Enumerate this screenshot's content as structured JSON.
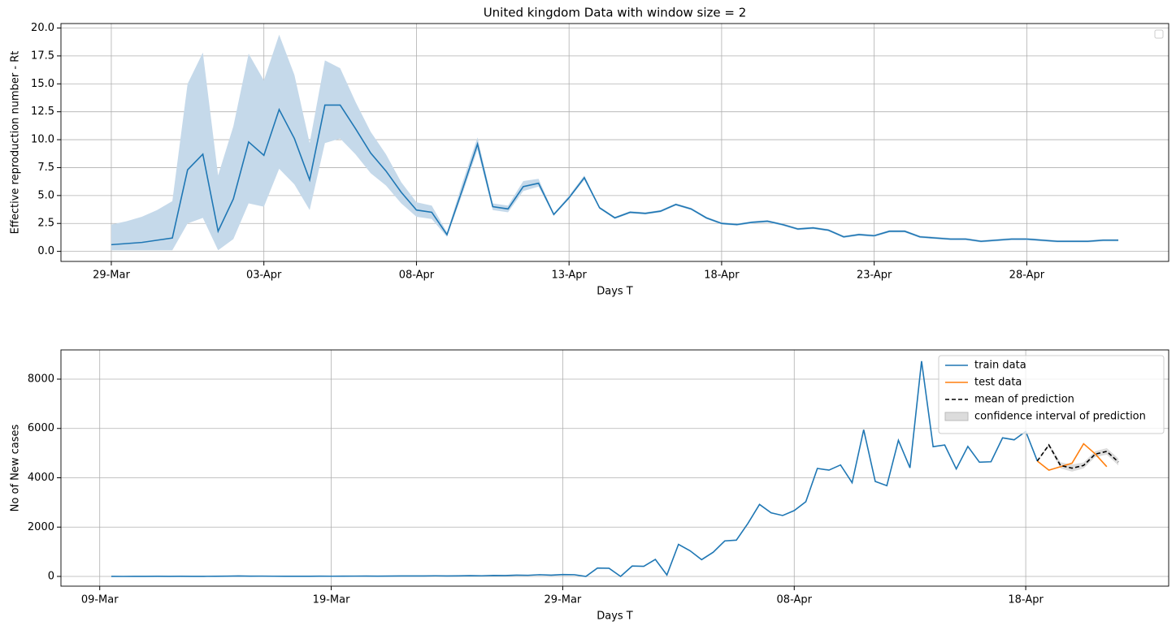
{
  "chart_data": [
    {
      "type": "line",
      "title": "United kingdom Data with window size = 2",
      "xlabel": "Days T",
      "ylabel": "Effective reproduction number - Rt",
      "categories": [
        "29-Mar",
        null,
        null,
        null,
        null,
        null,
        null,
        null,
        null,
        null,
        "03-Apr",
        null,
        null,
        null,
        null,
        null,
        null,
        null,
        null,
        null,
        "08-Apr",
        null,
        null,
        null,
        null,
        null,
        null,
        null,
        null,
        null,
        "13-Apr",
        null,
        null,
        null,
        null,
        null,
        null,
        null,
        null,
        null,
        "18-Apr",
        null,
        null,
        null,
        null,
        null,
        null,
        null,
        null,
        null,
        "23-Apr",
        null,
        null,
        null,
        null,
        null,
        null,
        null,
        null,
        null,
        "28-Apr",
        null,
        null,
        null,
        null,
        null,
        null
      ],
      "series": [
        {
          "color": "#1f77b4",
          "band_color": "#c5d9ea",
          "values": [
            0.6,
            0.7,
            0.8,
            1.0,
            1.2,
            7.3,
            8.7,
            1.8,
            4.7,
            9.8,
            8.6,
            12.7,
            10.1,
            6.4,
            13.1,
            13.1,
            11.0,
            8.8,
            7.2,
            5.3,
            3.7,
            3.5,
            1.5,
            5.5,
            9.6,
            4.0,
            3.8,
            5.8,
            6.1,
            3.3,
            4.8,
            6.6,
            3.9,
            3.0,
            3.5,
            3.4,
            3.6,
            4.2,
            3.8,
            3.0,
            2.5,
            2.4,
            2.6,
            2.7,
            2.4,
            2.0,
            2.1,
            1.9,
            1.3,
            1.5,
            1.4,
            1.8,
            1.8,
            1.3,
            1.2,
            1.1,
            1.1,
            0.9,
            1.0,
            1.1,
            1.1,
            1.0,
            0.9,
            0.9,
            0.9,
            1.0,
            1.0
          ],
          "lower": [
            0.1,
            0.1,
            0.1,
            0.1,
            0.1,
            2.5,
            3.0,
            0.1,
            1.1,
            4.3,
            4.0,
            7.4,
            6.0,
            3.7,
            9.7,
            10.1,
            8.7,
            7.0,
            5.9,
            4.3,
            3.1,
            2.9,
            1.3,
            5.1,
            9.1,
            3.7,
            3.5,
            5.4,
            5.8,
            3.2,
            4.7,
            6.4,
            3.8,
            2.9,
            3.4,
            3.3,
            3.5,
            4.1,
            3.7,
            2.9,
            2.4,
            2.3,
            2.5,
            2.6,
            2.3,
            1.9,
            2.0,
            1.8,
            1.2,
            1.4,
            1.3,
            1.7,
            1.7,
            1.2,
            1.1,
            1.0,
            1.0,
            0.8,
            0.9,
            1.0,
            1.0,
            0.9,
            0.8,
            0.8,
            0.8,
            0.9,
            0.9
          ],
          "upper": [
            2.4,
            2.7,
            3.1,
            3.7,
            4.5,
            15.0,
            17.8,
            6.8,
            11.2,
            17.7,
            15.3,
            19.4,
            15.8,
            9.7,
            17.1,
            16.4,
            13.4,
            10.7,
            8.7,
            6.2,
            4.4,
            4.1,
            1.7,
            6.1,
            10.2,
            4.3,
            4.1,
            6.3,
            6.5,
            3.4,
            5.0,
            6.8,
            4.0,
            3.1,
            3.6,
            3.5,
            3.7,
            4.3,
            3.9,
            3.1,
            2.6,
            2.5,
            2.7,
            2.8,
            2.5,
            2.1,
            2.2,
            2.0,
            1.4,
            1.6,
            1.5,
            1.9,
            1.9,
            1.4,
            1.3,
            1.2,
            1.2,
            1.0,
            1.1,
            1.2,
            1.2,
            1.1,
            1.0,
            1.0,
            1.0,
            1.1,
            1.1
          ]
        }
      ],
      "ylim": [
        -0.9,
        20.4
      ],
      "yticks": [
        {
          "value": 0,
          "label": "0.0"
        },
        2.5,
        {
          "value": 5,
          "label": "5.0"
        },
        7.5,
        {
          "value": 10,
          "label": "10.0"
        },
        12.5,
        {
          "value": 15,
          "label": "15.0"
        },
        17.5,
        {
          "value": 20,
          "label": "20.0"
        }
      ],
      "grid": true,
      "legend": "upper right"
    },
    {
      "type": "line",
      "xlabel": "Days T",
      "ylabel": "No of New cases",
      "categories": [
        "09-Mar",
        null,
        null,
        null,
        null,
        null,
        null,
        null,
        null,
        null,
        null,
        null,
        null,
        null,
        null,
        null,
        null,
        null,
        null,
        null,
        "19-Mar",
        null,
        null,
        null,
        null,
        null,
        null,
        null,
        null,
        null,
        null,
        null,
        null,
        null,
        null,
        null,
        null,
        null,
        null,
        null,
        "29-Mar",
        null,
        null,
        null,
        null,
        null,
        null,
        null,
        null,
        null,
        null,
        null,
        null,
        null,
        null,
        null,
        null,
        null,
        null,
        null,
        "08-Apr",
        null,
        null,
        null,
        null,
        null,
        null,
        null,
        null,
        null,
        null,
        null,
        null,
        null,
        null,
        null,
        null,
        null,
        null,
        null,
        "18-Apr",
        null,
        null,
        null,
        null,
        null,
        null,
        null,
        null
      ],
      "series": [
        {
          "name": "train data",
          "color": "#1f77b4",
          "values": [
            null,
            1,
            0,
            3,
            2,
            5,
            3,
            5,
            2,
            3,
            7,
            10,
            18,
            11,
            12,
            8,
            5,
            6,
            7,
            10,
            8,
            10,
            12,
            15,
            10,
            15,
            17,
            18,
            20,
            25,
            20,
            22,
            30,
            25,
            40,
            35,
            50,
            45,
            70,
            50,
            75,
            70,
            0,
            340,
            330,
            0,
            420,
            410,
            690,
            60,
            1300,
            1040,
            680,
            980,
            1440,
            1470,
            2150,
            2920,
            2580,
            2470,
            2670,
            3030,
            4380,
            4310,
            4520,
            3800,
            5950,
            3850,
            3680,
            5520,
            4400,
            8730,
            5260,
            5330,
            4360,
            5270,
            4630,
            4650,
            5620,
            5540,
            5880,
            4680,
            null,
            null,
            null,
            null,
            null,
            null,
            null
          ]
        },
        {
          "name": "test data",
          "color": "#ff7f0e",
          "values": [
            null,
            null,
            null,
            null,
            null,
            null,
            null,
            null,
            null,
            null,
            null,
            null,
            null,
            null,
            null,
            null,
            null,
            null,
            null,
            null,
            null,
            null,
            null,
            null,
            null,
            null,
            null,
            null,
            null,
            null,
            null,
            null,
            null,
            null,
            null,
            null,
            null,
            null,
            null,
            null,
            null,
            null,
            null,
            null,
            null,
            null,
            null,
            null,
            null,
            null,
            null,
            null,
            null,
            null,
            null,
            null,
            null,
            null,
            null,
            null,
            null,
            null,
            null,
            null,
            null,
            null,
            null,
            null,
            null,
            null,
            null,
            null,
            null,
            null,
            null,
            null,
            null,
            null,
            null,
            null,
            null,
            4680,
            4310,
            4450,
            4590,
            5380,
            4970,
            4450,
            null
          ]
        },
        {
          "name": "mean of prediction",
          "color": "#000000",
          "dash": true,
          "values": [
            null,
            null,
            null,
            null,
            null,
            null,
            null,
            null,
            null,
            null,
            null,
            null,
            null,
            null,
            null,
            null,
            null,
            null,
            null,
            null,
            null,
            null,
            null,
            null,
            null,
            null,
            null,
            null,
            null,
            null,
            null,
            null,
            null,
            null,
            null,
            null,
            null,
            null,
            null,
            null,
            null,
            null,
            null,
            null,
            null,
            null,
            null,
            null,
            null,
            null,
            null,
            null,
            null,
            null,
            null,
            null,
            null,
            null,
            null,
            null,
            null,
            null,
            null,
            null,
            null,
            null,
            null,
            null,
            null,
            null,
            null,
            null,
            null,
            null,
            null,
            null,
            null,
            null,
            null,
            null,
            null,
            4680,
            5330,
            4500,
            4390,
            4500,
            4960,
            5070,
            4640
          ]
        },
        {
          "name": "confidence interval of prediction",
          "color": "#dcdcdc",
          "lower": [
            null,
            null,
            null,
            null,
            null,
            null,
            null,
            null,
            null,
            null,
            null,
            null,
            null,
            null,
            null,
            null,
            null,
            null,
            null,
            null,
            null,
            null,
            null,
            null,
            null,
            null,
            null,
            null,
            null,
            null,
            null,
            null,
            null,
            null,
            null,
            null,
            null,
            null,
            null,
            null,
            null,
            null,
            null,
            null,
            null,
            null,
            null,
            null,
            null,
            null,
            null,
            null,
            null,
            null,
            null,
            null,
            null,
            null,
            null,
            null,
            null,
            null,
            null,
            null,
            null,
            null,
            null,
            null,
            null,
            null,
            null,
            null,
            null,
            null,
            null,
            null,
            null,
            null,
            null,
            null,
            null,
            4670,
            5260,
            4380,
            4250,
            4380,
            4840,
            4940,
            4500
          ],
          "upper": [
            null,
            null,
            null,
            null,
            null,
            null,
            null,
            null,
            null,
            null,
            null,
            null,
            null,
            null,
            null,
            null,
            null,
            null,
            null,
            null,
            null,
            null,
            null,
            null,
            null,
            null,
            null,
            null,
            null,
            null,
            null,
            null,
            null,
            null,
            null,
            null,
            null,
            null,
            null,
            null,
            null,
            null,
            null,
            null,
            null,
            null,
            null,
            null,
            null,
            null,
            null,
            null,
            null,
            null,
            null,
            null,
            null,
            null,
            null,
            null,
            null,
            null,
            null,
            null,
            null,
            null,
            null,
            null,
            null,
            null,
            null,
            null,
            null,
            null,
            null,
            null,
            null,
            null,
            null,
            null,
            null,
            4690,
            5400,
            4630,
            4540,
            4620,
            5080,
            5200,
            4780
          ]
        }
      ],
      "ylim": [
        -395,
        9185
      ],
      "yticks": [
        0,
        2000,
        4000,
        6000,
        8000
      ],
      "grid": true,
      "legend": "upper right"
    }
  ]
}
